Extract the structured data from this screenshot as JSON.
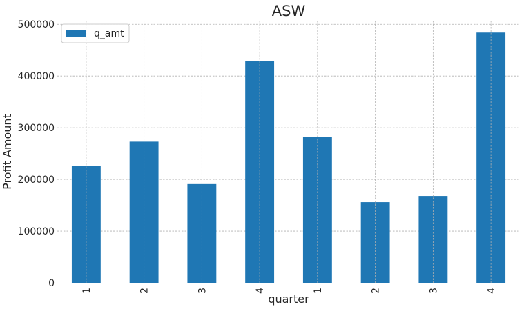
{
  "chart_data": {
    "type": "bar",
    "title": "ASW",
    "xlabel": "quarter",
    "ylabel": "Profit Amount",
    "categories": [
      "1",
      "2",
      "3",
      "4",
      "1",
      "2",
      "3",
      "4"
    ],
    "series": [
      {
        "name": "q_amt",
        "color": "#1f77b4",
        "values": [
          226000,
          273000,
          191000,
          429000,
          282000,
          156000,
          168000,
          484000
        ]
      }
    ],
    "yticks": [
      0,
      100000,
      200000,
      300000,
      400000,
      500000
    ],
    "ytick_labels": [
      "0",
      "100000",
      "200000",
      "300000",
      "400000",
      "500000"
    ],
    "ylim": [
      0,
      507000
    ],
    "grid": true,
    "legend_position": "top-left"
  }
}
